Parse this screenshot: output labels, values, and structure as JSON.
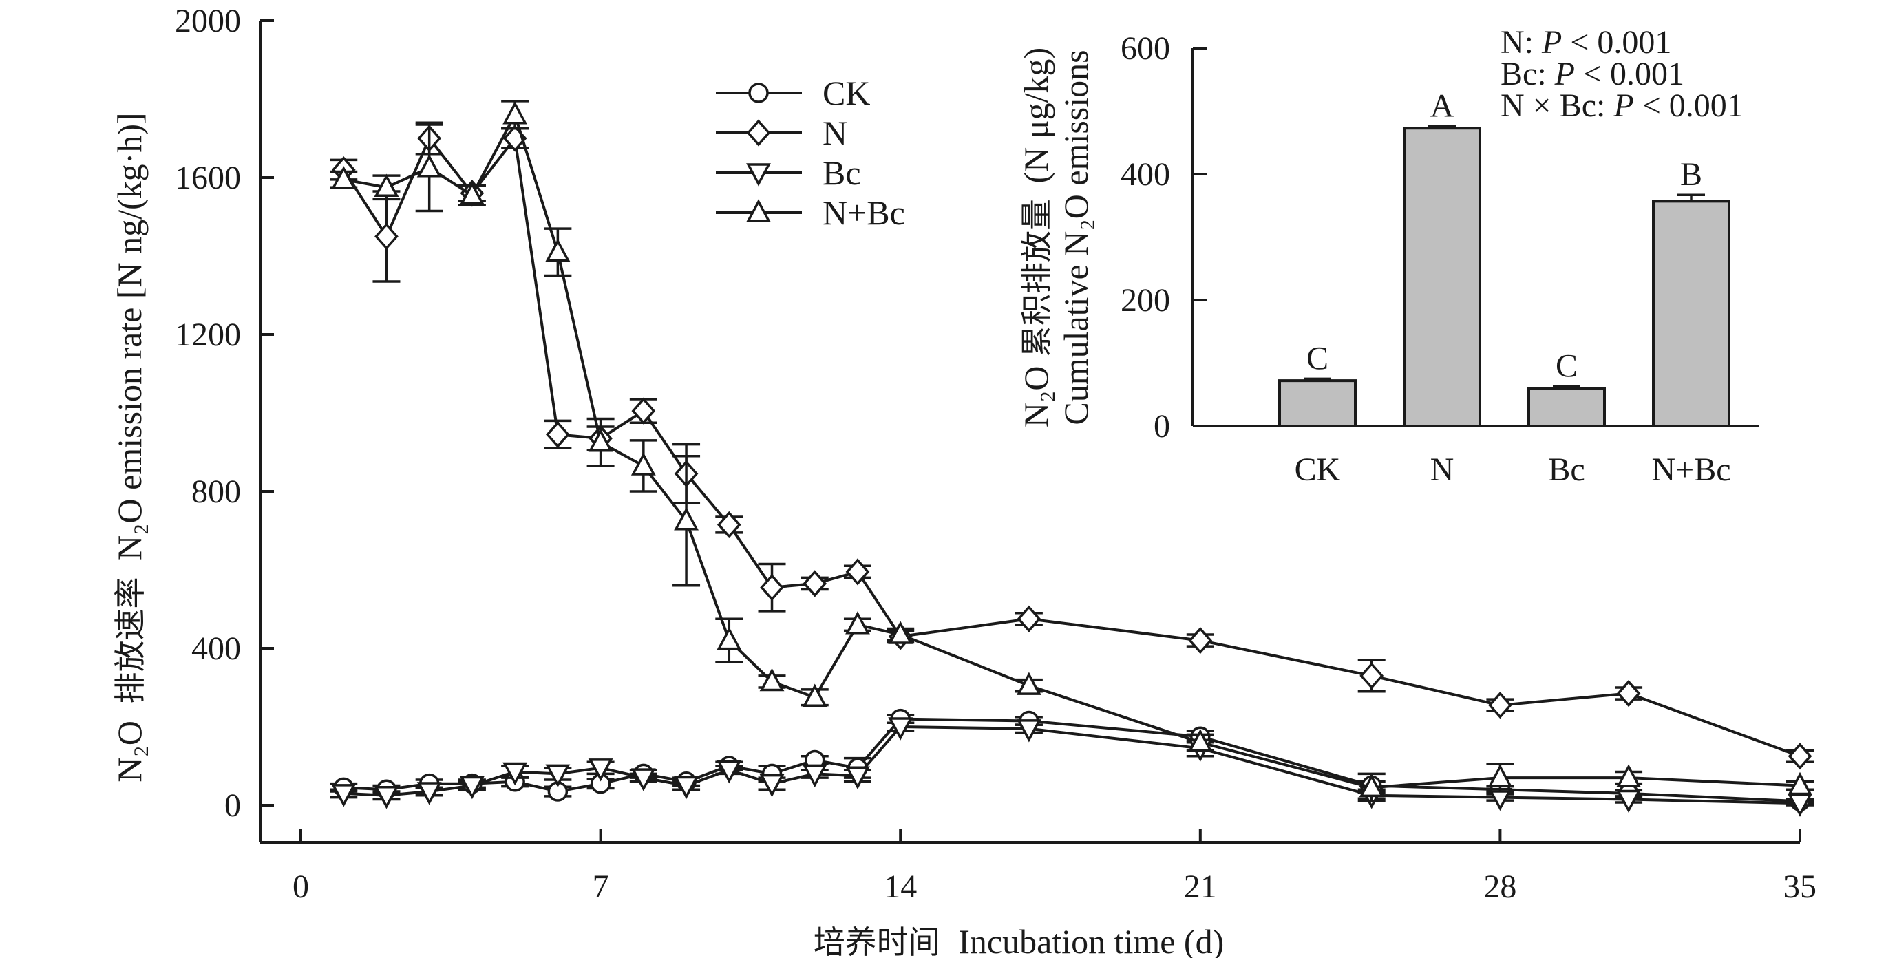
{
  "chart_data": [
    {
      "type": "line",
      "title": "",
      "xlabel_zh": "培养时间",
      "xlabel_en": "Incubation time (d)",
      "ylabel_zh": "排放速率",
      "ylabel_species": "N₂O",
      "ylabel_en": "N₂O emission rate [N ng/(kg·h)]",
      "xlim": [
        0,
        35
      ],
      "ylim": [
        -100,
        2000
      ],
      "xticks": [
        0,
        7,
        14,
        21,
        28,
        35
      ],
      "yticks": [
        0,
        400,
        800,
        1200,
        1600,
        2000
      ],
      "legend_position": "top-center",
      "series": [
        {
          "name": "CK",
          "marker": "circle",
          "x": [
            1,
            2,
            3,
            4,
            5,
            6,
            7,
            8,
            9,
            10,
            11,
            12,
            13,
            14,
            17,
            21,
            25,
            28,
            31,
            35
          ],
          "y": [
            45,
            40,
            55,
            55,
            60,
            35,
            55,
            80,
            60,
            100,
            80,
            115,
            95,
            220,
            215,
            175,
            50,
            40,
            30,
            10
          ],
          "err": [
            10,
            10,
            10,
            10,
            12,
            12,
            12,
            10,
            10,
            10,
            20,
            10,
            25,
            10,
            10,
            15,
            10,
            8,
            8,
            5
          ]
        },
        {
          "name": "N",
          "marker": "diamond",
          "x": [
            1,
            2,
            3,
            4,
            5,
            6,
            7,
            8,
            9,
            10,
            11,
            12,
            13,
            14,
            17,
            21,
            25,
            28,
            31,
            35
          ],
          "y": [
            1620,
            1450,
            1700,
            1560,
            1700,
            945,
            935,
            1005,
            845,
            715,
            555,
            565,
            595,
            430,
            475,
            420,
            330,
            255,
            285,
            125
          ],
          "err": [
            25,
            115,
            40,
            20,
            25,
            35,
            30,
            30,
            75,
            20,
            60,
            15,
            15,
            15,
            15,
            15,
            40,
            15,
            15,
            15
          ]
        },
        {
          "name": "Bc",
          "marker": "triangle-down",
          "x": [
            1,
            2,
            3,
            4,
            5,
            6,
            7,
            8,
            9,
            10,
            11,
            12,
            13,
            14,
            17,
            21,
            25,
            28,
            31,
            35
          ],
          "y": [
            30,
            25,
            35,
            50,
            85,
            80,
            95,
            70,
            50,
            90,
            55,
            80,
            75,
            200,
            195,
            145,
            25,
            20,
            15,
            5
          ],
          "err": [
            10,
            10,
            10,
            10,
            15,
            15,
            15,
            10,
            10,
            10,
            15,
            10,
            15,
            10,
            10,
            20,
            8,
            8,
            8,
            5
          ]
        },
        {
          "name": "N+Bc",
          "marker": "triangle-up",
          "x": [
            1,
            2,
            3,
            4,
            5,
            6,
            7,
            8,
            9,
            10,
            11,
            12,
            13,
            14,
            17,
            21,
            25,
            28,
            31,
            35
          ],
          "y": [
            1595,
            1575,
            1625,
            1555,
            1760,
            1410,
            925,
            865,
            725,
            420,
            315,
            275,
            460,
            435,
            305,
            160,
            45,
            70,
            70,
            50
          ],
          "err": [
            20,
            30,
            110,
            25,
            35,
            60,
            60,
            65,
            165,
            55,
            15,
            20,
            15,
            15,
            15,
            20,
            35,
            35,
            15,
            10
          ]
        }
      ]
    },
    {
      "type": "bar",
      "title": "",
      "ylabel_zh": "累积排放量",
      "ylabel_species": "N₂O",
      "ylabel_unit": "(N μg/kg)",
      "ylabel_en": "Cumulative N₂O emissions",
      "ylim": [
        0,
        600
      ],
      "yticks": [
        0,
        200,
        400,
        600
      ],
      "categories": [
        "CK",
        "N",
        "Bc",
        "N+Bc"
      ],
      "values": [
        72,
        473,
        60,
        357
      ],
      "err": [
        3,
        3,
        3,
        10
      ],
      "letters": [
        "C",
        "A",
        "C",
        "B"
      ],
      "stats": [
        {
          "label": "N: ",
          "p": "P",
          "rest": " < 0.001"
        },
        {
          "label": "Bc: ",
          "p": "P",
          "rest": " < 0.001"
        },
        {
          "label": "N × Bc: ",
          "p": "P",
          "rest": " < 0.001"
        }
      ]
    }
  ]
}
